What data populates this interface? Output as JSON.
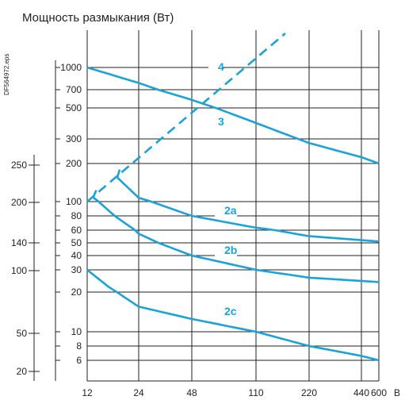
{
  "chart_data": {
    "type": "line",
    "title": "Мощность размыкания (Вт)",
    "side_note": "DF564972.eps",
    "x_unit": "В",
    "x_ticks": [
      "12",
      "24",
      "48",
      "110",
      "220",
      "440",
      "600"
    ],
    "x_log_range": [
      12,
      600
    ],
    "inner_y_ticks": [
      "1000",
      "700",
      "500",
      "300",
      "200",
      "100",
      "80",
      "60",
      "50",
      "40",
      "30",
      "20",
      "10",
      "8",
      "6"
    ],
    "outer_y_ticks": [
      "250",
      "200",
      "140",
      "100",
      "50",
      "20"
    ],
    "series": [
      {
        "name": "4",
        "style": "dashed",
        "points": [
          [
            12,
            100
          ],
          [
            150,
            1700
          ]
        ]
      },
      {
        "name": "3",
        "style": "solid",
        "points": [
          [
            12,
            1000
          ],
          [
            24,
            780
          ],
          [
            48,
            580
          ],
          [
            110,
            390
          ],
          [
            220,
            280
          ],
          [
            600,
            200
          ]
        ]
      },
      {
        "name": "2a",
        "style": "solid",
        "points": [
          [
            18,
            155
          ],
          [
            24,
            107
          ],
          [
            48,
            80
          ],
          [
            110,
            63
          ],
          [
            220,
            55
          ],
          [
            440,
            52
          ],
          [
            600,
            51
          ]
        ]
      },
      {
        "name": "2b",
        "style": "solid",
        "points": [
          [
            13,
            108
          ],
          [
            24,
            57
          ],
          [
            48,
            40
          ],
          [
            110,
            30
          ],
          [
            220,
            26
          ],
          [
            440,
            24.5
          ],
          [
            600,
            24
          ]
        ]
      },
      {
        "name": "2c",
        "style": "solid",
        "points": [
          [
            12,
            30
          ],
          [
            16,
            22
          ],
          [
            24,
            15.5
          ],
          [
            48,
            12.5
          ],
          [
            110,
            10
          ],
          [
            220,
            8
          ],
          [
            600,
            6
          ]
        ]
      }
    ],
    "line_color": "#1aa3d9",
    "grid": true
  }
}
